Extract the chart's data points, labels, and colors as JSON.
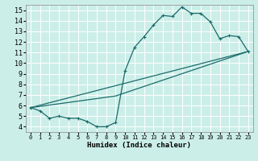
{
  "xlabel": "Humidex (Indice chaleur)",
  "bg_color": "#cceee8",
  "grid_color": "#ffffff",
  "line_color": "#1a6b6b",
  "xlim": [
    -0.5,
    23.5
  ],
  "ylim": [
    3.5,
    15.5
  ],
  "xticks": [
    0,
    1,
    2,
    3,
    4,
    5,
    6,
    7,
    8,
    9,
    10,
    11,
    12,
    13,
    14,
    15,
    16,
    17,
    18,
    19,
    20,
    21,
    22,
    23
  ],
  "yticks": [
    4,
    5,
    6,
    7,
    8,
    9,
    10,
    11,
    12,
    13,
    14,
    15
  ],
  "line1_x": [
    0,
    1,
    2,
    3,
    4,
    5,
    6,
    7,
    8,
    9,
    10,
    11,
    12,
    13,
    14,
    15,
    16,
    17,
    18,
    19,
    20,
    21,
    22,
    23
  ],
  "line1_y": [
    5.8,
    5.5,
    4.8,
    5.0,
    4.8,
    4.8,
    4.5,
    4.0,
    4.0,
    4.4,
    9.3,
    11.5,
    12.5,
    13.6,
    14.5,
    14.4,
    15.3,
    14.7,
    14.7,
    13.9,
    12.3,
    12.6,
    12.5,
    11.1
  ],
  "line2_x": [
    0,
    23
  ],
  "line2_y": [
    5.8,
    11.1
  ],
  "line3_x": [
    0,
    23
  ],
  "line3_y": [
    5.8,
    11.1
  ],
  "line4_x": [
    0,
    9,
    23
  ],
  "line4_y": [
    5.8,
    6.9,
    11.1
  ],
  "marker": "+"
}
